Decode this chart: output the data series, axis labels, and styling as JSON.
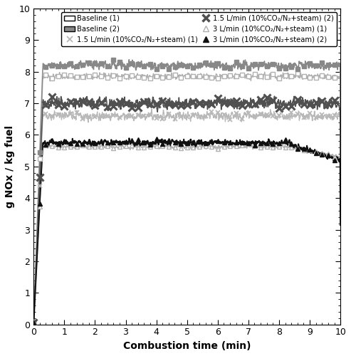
{
  "xlabel": "Combustion time (min)",
  "ylabel": "g NOx / kg fuel",
  "xlim": [
    0,
    10
  ],
  "ylim": [
    0,
    10
  ],
  "xticks": [
    0,
    1,
    2,
    3,
    4,
    5,
    6,
    7,
    8,
    9,
    10
  ],
  "yticks": [
    0,
    1,
    2,
    3,
    4,
    5,
    6,
    7,
    8,
    9,
    10
  ],
  "legend_labels": [
    "Baseline (1)",
    "Baseline (2)",
    "1.5 L/min (10%CO 2/N2+steam) (1)",
    "1.5 L/min (10%CO 2/N2+steam) (2)",
    "3 L/min (10%CO 2/N2+steam) (1)",
    "3 L/min (10%CO 2/N2+steam) (2)"
  ],
  "colors": {
    "baseline1": "#b0b0b0",
    "baseline2": "#888888",
    "x1_5_1": "#b8b8b8",
    "x1_5_2": "#505050",
    "tri3_1": "#b0b0b0",
    "tri3_2": "#101010"
  },
  "n_points": 2000,
  "steady_start_time": 0.3,
  "baseline1_steady": 7.85,
  "baseline2_steady": 8.2,
  "x1_5_1_steady": 6.6,
  "x1_5_2_steady": 7.0,
  "tri3_1_steady": 5.62,
  "tri3_2_steady": 5.75,
  "tri3_2_drop_start": 8.2,
  "tri3_2_drop_end": 5.2,
  "tri3_1_drop_start": 8.3,
  "tri3_1_drop_end": 5.3
}
